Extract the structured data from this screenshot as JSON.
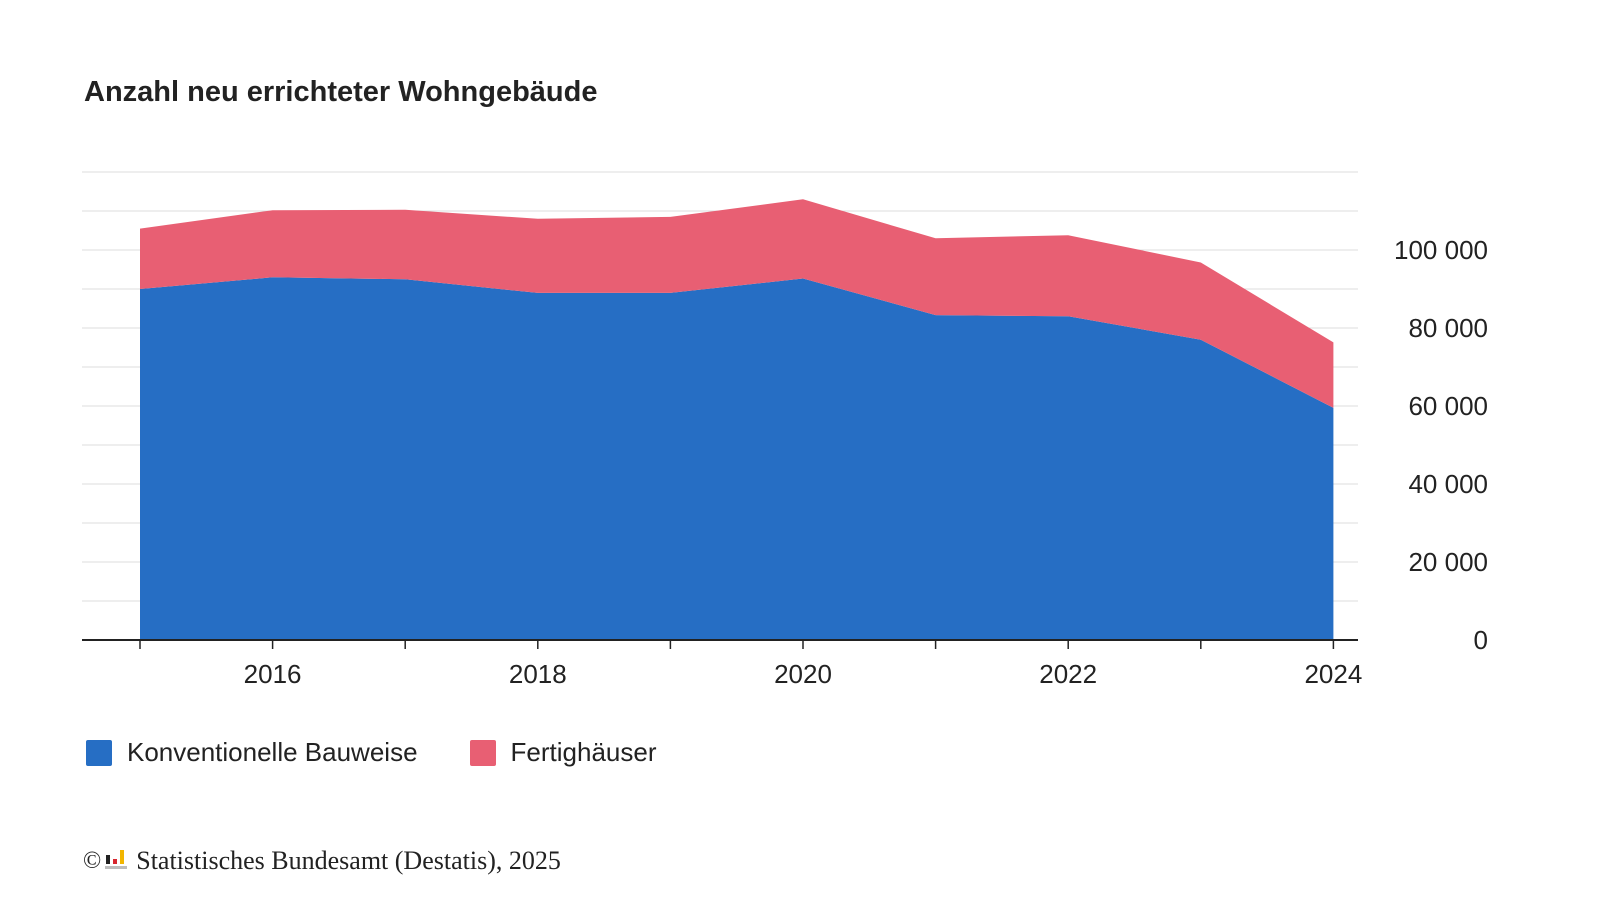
{
  "chart_data": {
    "type": "area",
    "stacked": true,
    "title": "Anzahl neu errichteter Wohngebäude",
    "x": [
      2015,
      2016,
      2017,
      2018,
      2019,
      2020,
      2021,
      2022,
      2023,
      2024
    ],
    "x_tick_labels": [
      "2016",
      "2018",
      "2020",
      "2022",
      "2024"
    ],
    "y_tick_labels": [
      "0",
      "20 000",
      "40 000",
      "60 000",
      "80 000",
      "100 000"
    ],
    "ylim": [
      0,
      120000
    ],
    "y_axis_position": "right",
    "grid": true,
    "legend_position": "bottom-left",
    "series": [
      {
        "name": "Konventionelle Bauweise",
        "color": "#266ec4",
        "values": [
          90000,
          93000,
          92500,
          89000,
          89000,
          92700,
          83300,
          83000,
          77000,
          59500
        ]
      },
      {
        "name": "Fertighäuser",
        "color": "#e85f73",
        "values": [
          15500,
          17200,
          17800,
          19000,
          19500,
          20300,
          19700,
          20800,
          19800,
          16800
        ]
      }
    ]
  },
  "legend": {
    "items": [
      {
        "label": "Konventionelle Bauweise",
        "color": "#266ec4"
      },
      {
        "label": "Fertighäuser",
        "color": "#e85f73"
      }
    ]
  },
  "source": {
    "copyright_symbol": "©",
    "text": "Statistisches Bundesamt (Destatis), 2025"
  }
}
